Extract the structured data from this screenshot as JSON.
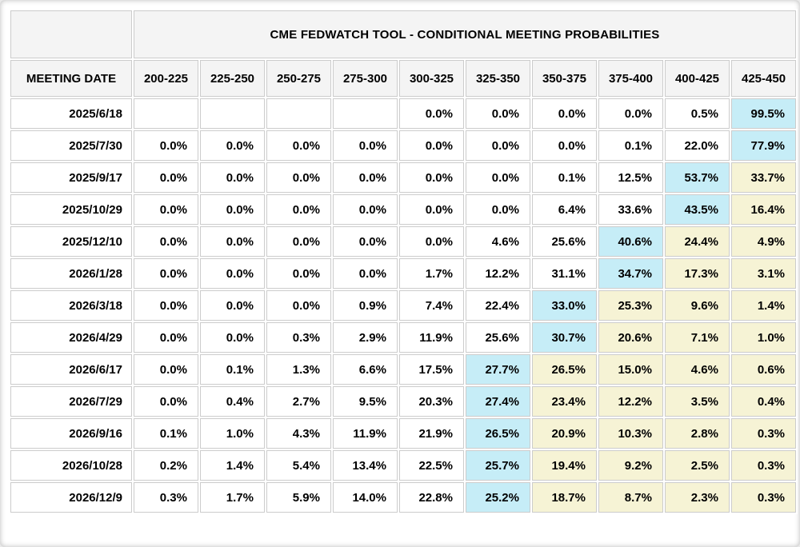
{
  "colors": {
    "cyan": "#c6edf7",
    "yellow": "#f6f3d5",
    "header_bg": "#f4f4f4",
    "border": "#cccccc"
  },
  "chart_data": {
    "type": "table",
    "title": "CME FEDWATCH TOOL - CONDITIONAL MEETING PROBABILITIES",
    "date_column_header": "MEETING DATE",
    "columns": [
      "200-225",
      "225-250",
      "250-275",
      "275-300",
      "300-325",
      "325-350",
      "350-375",
      "375-400",
      "400-425",
      "425-450"
    ],
    "rows": [
      {
        "date": "2025/6/18",
        "values": [
          "",
          "",
          "",
          "",
          "0.0%",
          "0.0%",
          "0.0%",
          "0.0%",
          "0.5%",
          "99.5%"
        ],
        "highlights": [
          "",
          "",
          "",
          "",
          "",
          "",
          "",
          "",
          "",
          "cyan"
        ]
      },
      {
        "date": "2025/7/30",
        "values": [
          "0.0%",
          "0.0%",
          "0.0%",
          "0.0%",
          "0.0%",
          "0.0%",
          "0.0%",
          "0.1%",
          "22.0%",
          "77.9%"
        ],
        "highlights": [
          "",
          "",
          "",
          "",
          "",
          "",
          "",
          "",
          "",
          "cyan"
        ]
      },
      {
        "date": "2025/9/17",
        "values": [
          "0.0%",
          "0.0%",
          "0.0%",
          "0.0%",
          "0.0%",
          "0.0%",
          "0.1%",
          "12.5%",
          "53.7%",
          "33.7%"
        ],
        "highlights": [
          "",
          "",
          "",
          "",
          "",
          "",
          "",
          "",
          "cyan",
          "yellow"
        ]
      },
      {
        "date": "2025/10/29",
        "values": [
          "0.0%",
          "0.0%",
          "0.0%",
          "0.0%",
          "0.0%",
          "0.0%",
          "6.4%",
          "33.6%",
          "43.5%",
          "16.4%"
        ],
        "highlights": [
          "",
          "",
          "",
          "",
          "",
          "",
          "",
          "",
          "cyan",
          "yellow"
        ]
      },
      {
        "date": "2025/12/10",
        "values": [
          "0.0%",
          "0.0%",
          "0.0%",
          "0.0%",
          "0.0%",
          "4.6%",
          "25.6%",
          "40.6%",
          "24.4%",
          "4.9%"
        ],
        "highlights": [
          "",
          "",
          "",
          "",
          "",
          "",
          "",
          "cyan",
          "yellow",
          "yellow"
        ]
      },
      {
        "date": "2026/1/28",
        "values": [
          "0.0%",
          "0.0%",
          "0.0%",
          "0.0%",
          "1.7%",
          "12.2%",
          "31.1%",
          "34.7%",
          "17.3%",
          "3.1%"
        ],
        "highlights": [
          "",
          "",
          "",
          "",
          "",
          "",
          "",
          "cyan",
          "yellow",
          "yellow"
        ]
      },
      {
        "date": "2026/3/18",
        "values": [
          "0.0%",
          "0.0%",
          "0.0%",
          "0.9%",
          "7.4%",
          "22.4%",
          "33.0%",
          "25.3%",
          "9.6%",
          "1.4%"
        ],
        "highlights": [
          "",
          "",
          "",
          "",
          "",
          "",
          "cyan",
          "yellow",
          "yellow",
          "yellow"
        ]
      },
      {
        "date": "2026/4/29",
        "values": [
          "0.0%",
          "0.0%",
          "0.3%",
          "2.9%",
          "11.9%",
          "25.6%",
          "30.7%",
          "20.6%",
          "7.1%",
          "1.0%"
        ],
        "highlights": [
          "",
          "",
          "",
          "",
          "",
          "",
          "cyan",
          "yellow",
          "yellow",
          "yellow"
        ]
      },
      {
        "date": "2026/6/17",
        "values": [
          "0.0%",
          "0.1%",
          "1.3%",
          "6.6%",
          "17.5%",
          "27.7%",
          "26.5%",
          "15.0%",
          "4.6%",
          "0.6%"
        ],
        "highlights": [
          "",
          "",
          "",
          "",
          "",
          "cyan",
          "yellow",
          "yellow",
          "yellow",
          "yellow"
        ]
      },
      {
        "date": "2026/7/29",
        "values": [
          "0.0%",
          "0.4%",
          "2.7%",
          "9.5%",
          "20.3%",
          "27.4%",
          "23.4%",
          "12.2%",
          "3.5%",
          "0.4%"
        ],
        "highlights": [
          "",
          "",
          "",
          "",
          "",
          "cyan",
          "yellow",
          "yellow",
          "yellow",
          "yellow"
        ]
      },
      {
        "date": "2026/9/16",
        "values": [
          "0.1%",
          "1.0%",
          "4.3%",
          "11.9%",
          "21.9%",
          "26.5%",
          "20.9%",
          "10.3%",
          "2.8%",
          "0.3%"
        ],
        "highlights": [
          "",
          "",
          "",
          "",
          "",
          "cyan",
          "yellow",
          "yellow",
          "yellow",
          "yellow"
        ]
      },
      {
        "date": "2026/10/28",
        "values": [
          "0.2%",
          "1.4%",
          "5.4%",
          "13.4%",
          "22.5%",
          "25.7%",
          "19.4%",
          "9.2%",
          "2.5%",
          "0.3%"
        ],
        "highlights": [
          "",
          "",
          "",
          "",
          "",
          "cyan",
          "yellow",
          "yellow",
          "yellow",
          "yellow"
        ]
      },
      {
        "date": "2026/12/9",
        "values": [
          "0.3%",
          "1.7%",
          "5.9%",
          "14.0%",
          "22.8%",
          "25.2%",
          "18.7%",
          "8.7%",
          "2.3%",
          "0.3%"
        ],
        "highlights": [
          "",
          "",
          "",
          "",
          "",
          "cyan",
          "yellow",
          "yellow",
          "yellow",
          "yellow"
        ]
      }
    ]
  }
}
